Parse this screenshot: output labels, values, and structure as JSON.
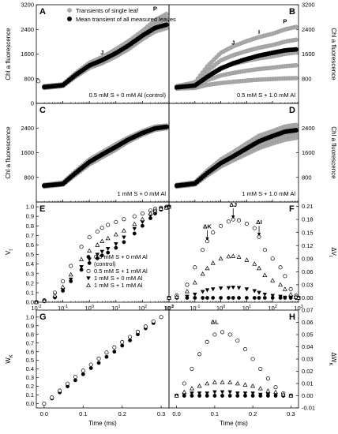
{
  "chart_data": [
    {
      "id": "A",
      "panel_label": "A",
      "type": "scatter",
      "xscale": "log",
      "xlim": [
        0.01,
        1000
      ],
      "ylim": [
        0,
        3200
      ],
      "yticks": [
        0,
        800,
        1600,
        2400,
        3200
      ],
      "ylabel": "Chl a fluorescence",
      "condition": "0.5 mM S + 0 mM Al (control)",
      "legend": [
        "Transients of single leaf",
        "Mean transient of all measured leaves"
      ],
      "annotations": [
        {
          "label": "J",
          "x": 3,
          "y": 1380
        },
        {
          "label": "P",
          "x": 300,
          "y": 2800
        }
      ],
      "series": [
        {
          "name": "Transients of single leaf",
          "band": true,
          "lo": [
            500,
            560,
            860,
            1150,
            1300,
            1520,
            1760,
            2080,
            2330,
            2440
          ],
          "hi": [
            560,
            620,
            980,
            1320,
            1500,
            1760,
            2020,
            2350,
            2700,
            2900
          ]
        },
        {
          "name": "Mean transient of all measured leaves",
          "values": [
            530,
            590,
            920,
            1230,
            1400,
            1630,
            1880,
            2200,
            2450,
            2550
          ]
        }
      ],
      "x": [
        0.02,
        0.1,
        0.3,
        1,
        3,
        10,
        30,
        100,
        300,
        800
      ]
    },
    {
      "id": "B",
      "panel_label": "B",
      "type": "scatter",
      "xscale": "log",
      "xlim": [
        0.01,
        1000
      ],
      "ylim": [
        0,
        3200
      ],
      "yticks": [
        800,
        1600,
        2400,
        3200
      ],
      "ylabel": "Chl a fluorescence",
      "condition": "0.5 mM S + 1.0 mM Al",
      "annotations": [
        {
          "label": "J",
          "x": 3,
          "y": 1700
        },
        {
          "label": "I",
          "x": 30,
          "y": 2050
        },
        {
          "label": "P",
          "x": 300,
          "y": 2400
        }
      ],
      "series": [
        {
          "name": "Transients of single leaf",
          "band": true,
          "lo": [
            480,
            500,
            600,
            660,
            700,
            740,
            770,
            790,
            810,
            820
          ],
          "hi": [
            560,
            680,
            1200,
            1640,
            1850,
            2020,
            2150,
            2260,
            2400,
            2480
          ]
        },
        {
          "name": "Mean transient of all measured leaves",
          "values": [
            520,
            580,
            860,
            1130,
            1300,
            1440,
            1550,
            1640,
            1720,
            1750
          ]
        }
      ],
      "x": [
        0.02,
        0.1,
        0.3,
        1,
        3,
        10,
        30,
        100,
        300,
        800
      ]
    },
    {
      "id": "C",
      "panel_label": "C",
      "type": "scatter",
      "xscale": "log",
      "xlim": [
        0.01,
        1000
      ],
      "ylim": [
        0,
        3200
      ],
      "yticks": [
        800,
        1600,
        2400
      ],
      "ylabel": "Chl a fluorescence",
      "condition": "1 mM S + 0 mM Al",
      "series": [
        {
          "name": "Transients of single leaf",
          "band": true,
          "lo": [
            500,
            560,
            880,
            1220,
            1450,
            1700,
            1960,
            2180,
            2340,
            2390
          ],
          "hi": [
            560,
            630,
            1000,
            1380,
            1620,
            1880,
            2100,
            2300,
            2450,
            2480
          ]
        },
        {
          "name": "Mean transient of all measured leaves",
          "values": [
            530,
            590,
            940,
            1300,
            1540,
            1790,
            2030,
            2240,
            2390,
            2440
          ]
        }
      ],
      "x": [
        0.02,
        0.1,
        0.3,
        1,
        3,
        10,
        30,
        100,
        300,
        800
      ]
    },
    {
      "id": "D",
      "panel_label": "D",
      "type": "scatter",
      "xscale": "log",
      "xlim": [
        0.01,
        1000
      ],
      "ylim": [
        0,
        3200
      ],
      "yticks": [
        800,
        1600,
        2400
      ],
      "ylabel": "Chl a fluorescence",
      "condition": "1 mM S + 1.0 mM Al",
      "series": [
        {
          "name": "Transients of single leaf",
          "band": true,
          "lo": [
            500,
            560,
            860,
            1150,
            1350,
            1560,
            1750,
            1900,
            2020,
            2080
          ],
          "hi": [
            560,
            640,
            1020,
            1380,
            1620,
            1900,
            2150,
            2300,
            2450,
            2500
          ]
        },
        {
          "name": "Mean transient of all measured leaves",
          "values": [
            530,
            600,
            940,
            1260,
            1480,
            1740,
            1970,
            2140,
            2280,
            2330
          ]
        }
      ],
      "x": [
        0.02,
        0.1,
        0.3,
        1,
        3,
        10,
        30,
        100,
        300,
        800
      ]
    },
    {
      "id": "E",
      "panel_label": "E",
      "type": "scatter",
      "xscale": "log",
      "xlim": [
        0.01,
        1000
      ],
      "ylim": [
        0,
        1.05
      ],
      "yticks": [
        0.0,
        0.1,
        0.2,
        0.3,
        0.4,
        0.5,
        0.6,
        0.7,
        0.8,
        0.9,
        1.0
      ],
      "ytick_labels": [
        "0.0",
        "0.1",
        "0.2",
        "0.3",
        "0.4",
        "0.5",
        "0.6",
        "0.7",
        "0.8",
        "0.9",
        "1.0"
      ],
      "xticks": [
        0.01,
        0.1,
        1,
        10,
        100,
        1000
      ],
      "ylabel": "V",
      "ylabel_sub": "t",
      "x": [
        0.01,
        0.02,
        0.05,
        0.1,
        0.2,
        0.5,
        1,
        2,
        3,
        5,
        10,
        20,
        50,
        100,
        200,
        300,
        500,
        800,
        1000
      ],
      "series": [
        {
          "name": "0.5 mM S + 0 mM Al",
          "marker": "filled-circle",
          "values": [
            0.0,
            0.01,
            0.05,
            0.12,
            0.22,
            0.34,
            0.41,
            0.46,
            0.49,
            0.52,
            0.57,
            0.63,
            0.72,
            0.8,
            0.88,
            0.93,
            0.97,
            0.99,
            1.0
          ]
        },
        {
          "name": "0.5 mM S + 1 mM Al",
          "marker": "open-circle",
          "values": [
            0.0,
            0.02,
            0.1,
            0.22,
            0.38,
            0.58,
            0.68,
            0.74,
            0.78,
            0.81,
            0.84,
            0.87,
            0.9,
            0.93,
            0.96,
            0.98,
            0.99,
            1.0,
            1.0
          ]
        },
        {
          "name": "1 mM S + 0 mM Al",
          "marker": "filled-triangle-down",
          "values": [
            0.0,
            0.01,
            0.05,
            0.13,
            0.24,
            0.37,
            0.45,
            0.5,
            0.53,
            0.56,
            0.61,
            0.68,
            0.77,
            0.84,
            0.91,
            0.95,
            0.98,
            0.99,
            1.0
          ]
        },
        {
          "name": "1 mM S + 1 mM Al",
          "marker": "open-triangle-up",
          "values": [
            0.0,
            0.015,
            0.07,
            0.16,
            0.29,
            0.45,
            0.54,
            0.6,
            0.64,
            0.67,
            0.71,
            0.75,
            0.82,
            0.87,
            0.93,
            0.96,
            0.98,
            0.99,
            1.0
          ]
        }
      ],
      "legend": [
        {
          "text": "0.5 mM S + 0 mM Al",
          "text2": "(control)",
          "marker": "filled-circle"
        },
        {
          "text": "0.5 mM S + 1 mM Al",
          "marker": "open-circle"
        },
        {
          "text": "1 mM S + 0 mM Al",
          "marker": "filled-triangle-down"
        },
        {
          "text": "1 mM S + 1 mM Al",
          "marker": "open-triangle-up"
        }
      ]
    },
    {
      "id": "F",
      "panel_label": "F",
      "type": "scatter",
      "xscale": "log",
      "xlim": [
        0.01,
        1000
      ],
      "ylim": [
        -0.01,
        0.22
      ],
      "yticks": [
        0.0,
        0.03,
        0.06,
        0.09,
        0.12,
        0.15,
        0.18,
        0.21
      ],
      "ytick_labels": [
        "0.00",
        "0.03",
        "0.06",
        "0.09",
        "0.12",
        "0.15",
        "0.18",
        "0.21"
      ],
      "xticks": [
        0.01,
        0.1,
        1,
        10,
        100,
        1000
      ],
      "ylabel": "ΔV",
      "ylabel_sub": "t",
      "x": [
        0.01,
        0.02,
        0.05,
        0.1,
        0.2,
        0.3,
        0.5,
        1,
        2,
        3,
        5,
        10,
        20,
        30,
        50,
        100,
        200,
        300,
        500,
        800,
        1000
      ],
      "series": [
        {
          "name": "0.5 mM S + 0 mM Al",
          "marker": "filled-circle",
          "values": [
            0,
            0,
            0,
            0,
            0,
            0,
            0,
            0,
            0,
            0,
            0,
            0,
            0,
            0,
            0,
            0,
            0,
            0,
            0,
            0,
            0
          ]
        },
        {
          "name": "0.5 mM S + 1 mM Al",
          "marker": "open-circle",
          "values": [
            0.0,
            0.005,
            0.03,
            0.07,
            0.11,
            0.13,
            0.15,
            0.165,
            0.175,
            0.18,
            0.178,
            0.17,
            0.16,
            0.14,
            0.11,
            0.09,
            0.07,
            0.05,
            0.02,
            0.005,
            0.0
          ]
        },
        {
          "name": "1 mM S + 0 mM Al",
          "marker": "filled-triangle-down",
          "values": [
            0.0,
            0.0,
            0.003,
            0.008,
            0.014,
            0.018,
            0.02,
            0.022,
            0.023,
            0.024,
            0.023,
            0.02,
            0.016,
            0.012,
            0.008,
            0.005,
            0.003,
            0.001,
            0.0,
            0.0,
            0.0
          ]
        },
        {
          "name": "1 mM S + 1 mM Al",
          "marker": "open-triangle-up",
          "values": [
            0.0,
            0.002,
            0.015,
            0.035,
            0.055,
            0.068,
            0.08,
            0.09,
            0.095,
            0.096,
            0.094,
            0.087,
            0.078,
            0.068,
            0.052,
            0.04,
            0.03,
            0.02,
            0.008,
            0.002,
            0.0
          ]
        }
      ],
      "annotations": [
        {
          "label": "ΔK",
          "x": 0.3,
          "y": 0.13
        },
        {
          "label": "ΔJ",
          "x": 3,
          "y": 0.18
        },
        {
          "label": "ΔI",
          "x": 30,
          "y": 0.14
        }
      ]
    },
    {
      "id": "G",
      "panel_label": "G",
      "type": "scatter",
      "xscale": "linear",
      "xlim": [
        -0.02,
        0.32
      ],
      "ylim": [
        -0.05,
        1.08
      ],
      "xticks": [
        0.0,
        0.1,
        0.2,
        0.3
      ],
      "xtick_labels": [
        "0.0",
        "0.1",
        "0.2",
        "0.3"
      ],
      "yticks": [
        0.0,
        0.1,
        0.2,
        0.3,
        0.4,
        0.5,
        0.6,
        0.7,
        0.8,
        0.9,
        1.0
      ],
      "ytick_labels": [
        "0.0",
        "0.1",
        "0.2",
        "0.3",
        "0.4",
        "0.5",
        "0.6",
        "0.7",
        "0.8",
        "0.9",
        "1.0"
      ],
      "xlabel": "Time (ms)",
      "ylabel": "W",
      "ylabel_sub": "K",
      "x": [
        0.0,
        0.02,
        0.04,
        0.06,
        0.08,
        0.1,
        0.12,
        0.14,
        0.16,
        0.18,
        0.2,
        0.22,
        0.24,
        0.26,
        0.28,
        0.3
      ],
      "series": [
        {
          "name": "0.5 mM S + 0 mM Al",
          "marker": "filled-circle",
          "values": [
            0.0,
            0.06,
            0.13,
            0.2,
            0.27,
            0.34,
            0.41,
            0.47,
            0.54,
            0.6,
            0.67,
            0.73,
            0.8,
            0.87,
            0.93,
            1.0
          ]
        },
        {
          "name": "0.5 mM S + 1 mM Al",
          "marker": "open-circle",
          "values": [
            0.0,
            0.07,
            0.15,
            0.23,
            0.31,
            0.38,
            0.45,
            0.52,
            0.59,
            0.65,
            0.71,
            0.77,
            0.83,
            0.89,
            0.95,
            1.0
          ]
        }
      ]
    },
    {
      "id": "H",
      "panel_label": "H",
      "type": "scatter",
      "xscale": "linear",
      "xlim": [
        -0.02,
        0.32
      ],
      "ylim": [
        -0.01,
        0.07
      ],
      "xticks": [
        0.0,
        0.1,
        0.2,
        0.3
      ],
      "xtick_labels": [
        "0.0",
        "0.1",
        "0.2",
        "0.3"
      ],
      "yticks": [
        -0.01,
        0.0,
        0.01,
        0.02,
        0.03,
        0.04,
        0.05,
        0.06,
        0.07
      ],
      "ytick_labels": [
        "-0.01",
        "0.00",
        "0.01",
        "0.02",
        "0.03",
        "0.04",
        "0.05",
        "0.06",
        "0.07"
      ],
      "xlabel": "Time (ms)",
      "ylabel": "ΔW",
      "ylabel_sub": "K",
      "x": [
        0.0,
        0.02,
        0.04,
        0.06,
        0.08,
        0.1,
        0.12,
        0.14,
        0.16,
        0.18,
        0.2,
        0.22,
        0.24,
        0.26,
        0.28,
        0.3
      ],
      "series": [
        {
          "name": "0.5 mM S + 0 mM Al",
          "marker": "filled-circle",
          "values": [
            0,
            0,
            0,
            0,
            0,
            0,
            0,
            0,
            0,
            0,
            0,
            0,
            0,
            0,
            0,
            0
          ]
        },
        {
          "name": "0.5 mM S + 1 mM Al",
          "marker": "open-circle",
          "values": [
            0.0,
            0.01,
            0.022,
            0.034,
            0.044,
            0.05,
            0.052,
            0.05,
            0.045,
            0.038,
            0.03,
            0.022,
            0.014,
            0.007,
            0.002,
            0.0
          ]
        },
        {
          "name": "1 mM S + 0 mM Al",
          "marker": "filled-triangle-down",
          "values": [
            0.0,
            0.001,
            0.002,
            0.002,
            0.002,
            0.003,
            0.003,
            0.003,
            0.002,
            0.002,
            0.002,
            0.001,
            0.001,
            0.001,
            0.0,
            0.0
          ]
        },
        {
          "name": "1 mM S + 1 mM Al",
          "marker": "open-triangle-up",
          "values": [
            0.0,
            0.003,
            0.006,
            0.008,
            0.01,
            0.011,
            0.011,
            0.011,
            0.01,
            0.009,
            0.008,
            0.006,
            0.004,
            0.003,
            0.001,
            0.0
          ]
        }
      ],
      "annotations": [
        {
          "label": "ΔL",
          "x": 0.1,
          "y": 0.055
        }
      ]
    }
  ]
}
